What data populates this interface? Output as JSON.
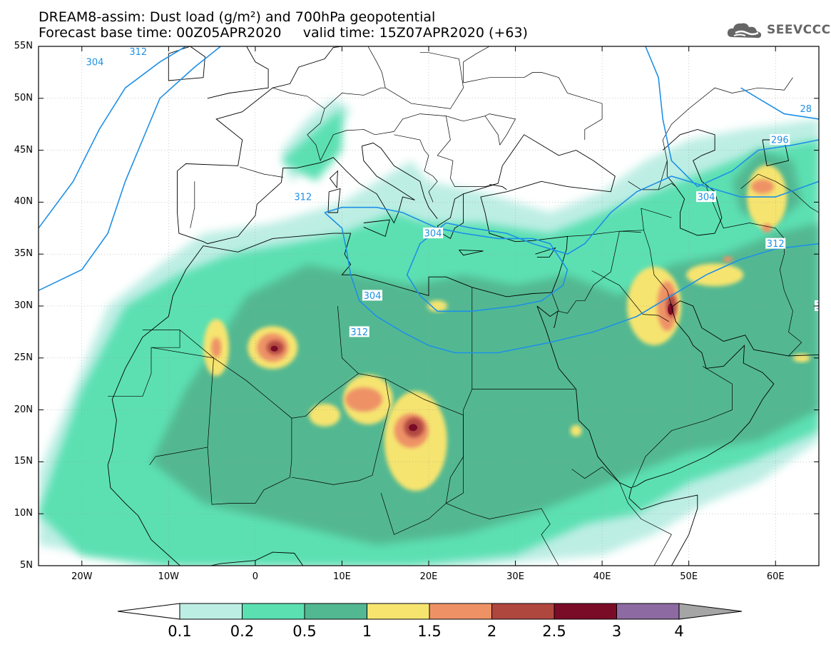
{
  "title": {
    "line1": "DREAM8-assim: Dust load (g/m²) and 700hPa geopotential",
    "line2": "Forecast base time: 00Z05APR2020     valid time: 15Z07APR2020 (+63)"
  },
  "logo": {
    "text": "SEEVCCC",
    "icon": "cloud-icon"
  },
  "axes": {
    "lat_labels": [
      "55N",
      "50N",
      "45N",
      "40N",
      "35N",
      "30N",
      "25N",
      "20N",
      "15N",
      "10N",
      "5N"
    ],
    "lon_labels": [
      "20W",
      "10W",
      "0",
      "10E",
      "20E",
      "30E",
      "40E",
      "50E",
      "60E"
    ],
    "lon_range": [
      -25,
      65
    ],
    "lat_range": [
      5,
      55
    ]
  },
  "colorbar": {
    "ticks": [
      "0.1",
      "0.2",
      "0.5",
      "1",
      "1.5",
      "2",
      "2.5",
      "3",
      "4"
    ],
    "colors": [
      "#bdeee4",
      "#5be0b2",
      "#52b891",
      "#f6e46f",
      "#ee9266",
      "#b0473f",
      "#7a0c28",
      "#8d6aa1"
    ],
    "low_color": "#ffffff",
    "high_color": "#a5a5a5"
  },
  "contour_labels": [
    {
      "text": "304"
    },
    {
      "text": "312"
    },
    {
      "text": "312"
    },
    {
      "text": "304"
    },
    {
      "text": "304"
    },
    {
      "text": "312"
    },
    {
      "text": "304"
    },
    {
      "text": "312"
    },
    {
      "text": "296"
    },
    {
      "text": "28"
    },
    {
      "text": "3"
    }
  ]
}
